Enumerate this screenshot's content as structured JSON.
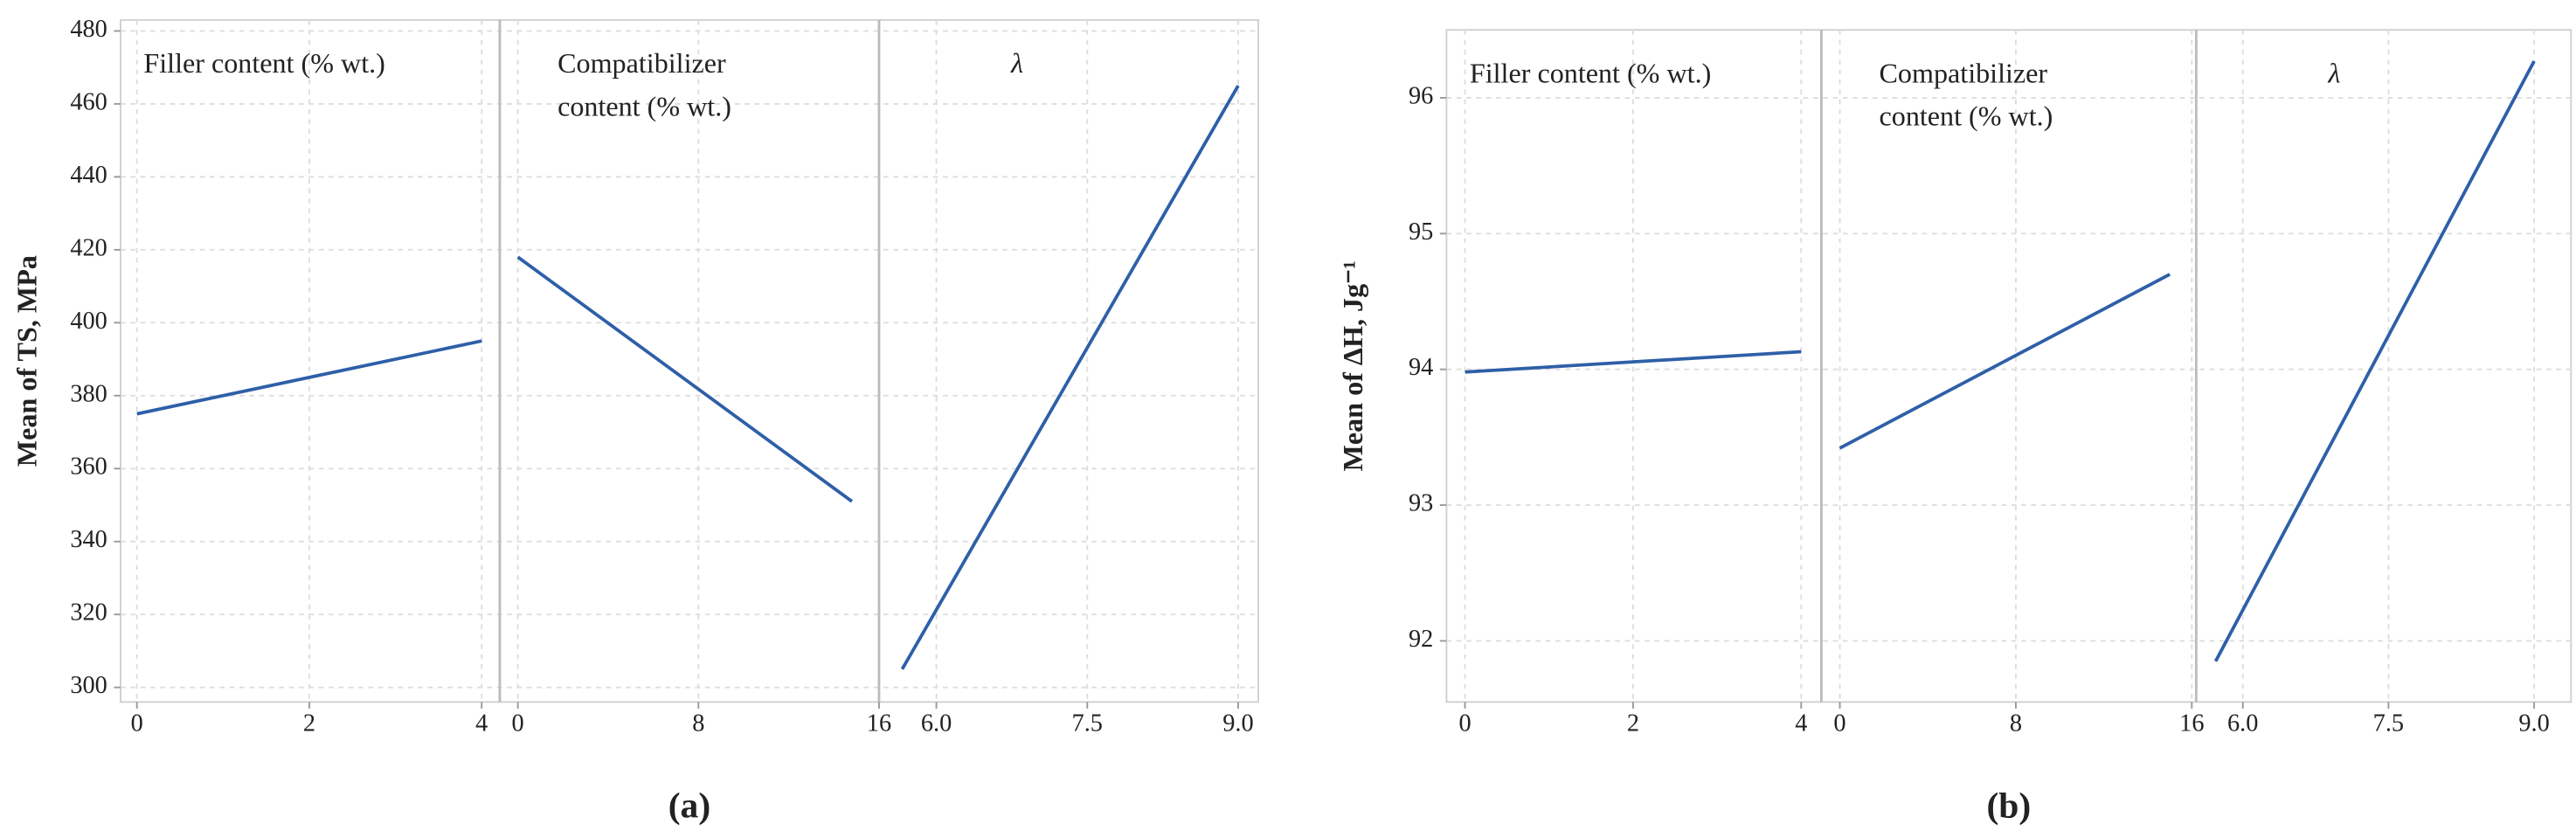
{
  "chart_data": [
    {
      "type": "line",
      "ylabel": "Mean of TS, MPa",
      "caption": "(a)",
      "color": "#2e5fa8",
      "grid": true,
      "ylim": [
        296,
        483
      ],
      "yticks": [
        300,
        320,
        340,
        360,
        380,
        400,
        420,
        440,
        460,
        480
      ],
      "panels": [
        {
          "title": [
            "Filler content (% wt.)"
          ],
          "xlim": [
            -0.19,
            4.21
          ],
          "xticks": [
            0,
            2,
            4
          ],
          "x": [
            0,
            4
          ],
          "values": [
            375,
            395
          ]
        },
        {
          "title": [
            "Compatibilizer",
            "content (% wt.)"
          ],
          "xlim": [
            -0.8,
            16
          ],
          "xticks": [
            0,
            8,
            16
          ],
          "x": [
            0,
            14.8
          ],
          "values": [
            418,
            351
          ]
        },
        {
          "title": [
            "λ"
          ],
          "xlim": [
            5.43,
            9.2
          ],
          "xticks": [
            {
              "value": 6,
              "label": "6.0"
            },
            7.5,
            {
              "value": 9,
              "label": "9.0"
            }
          ],
          "x": [
            5.66,
            9.0
          ],
          "values": [
            305,
            465
          ]
        }
      ]
    },
    {
      "type": "line",
      "ylabel": "Mean of ΔH, Jg⁻¹",
      "caption": "(b)",
      "color": "#2e5fa8",
      "grid": true,
      "ylim": [
        91.55,
        96.5
      ],
      "yticks": [
        92,
        93,
        94,
        95,
        96
      ],
      "panels": [
        {
          "title": [
            "Filler content (% wt.)"
          ],
          "xlim": [
            -0.22,
            4.24
          ],
          "xticks": [
            0,
            2,
            4
          ],
          "x": [
            0,
            4
          ],
          "values": [
            93.98,
            94.13
          ]
        },
        {
          "title": [
            "Compatibilizer",
            "content (% wt.)"
          ],
          "xlim": [
            -0.84,
            16.2
          ],
          "xticks": [
            0,
            8,
            16
          ],
          "x": [
            0,
            15
          ],
          "values": [
            93.42,
            94.7
          ]
        },
        {
          "title": [
            "λ"
          ],
          "xlim": [
            5.52,
            9.38
          ],
          "xticks": [
            {
              "value": 6,
              "label": "6.0"
            },
            7.5,
            {
              "value": 9,
              "label": "9.0"
            }
          ],
          "x": [
            5.72,
            9.0
          ],
          "values": [
            91.85,
            96.27
          ]
        }
      ]
    }
  ]
}
